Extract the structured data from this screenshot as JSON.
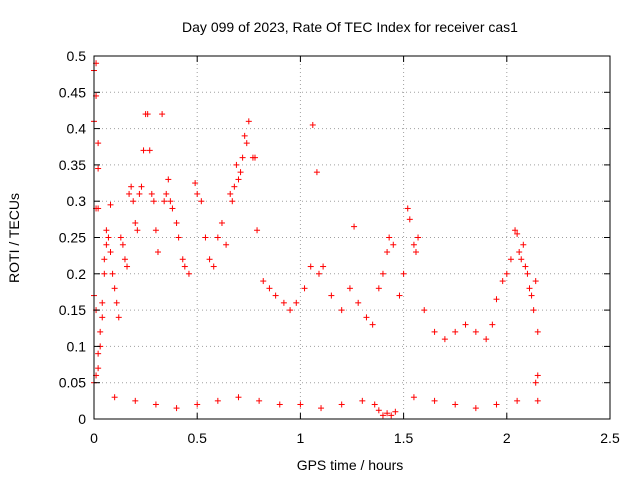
{
  "chart_data": {
    "type": "scatter",
    "title": "Day 099 of 2023, Rate Of TEC Index for receiver cas1",
    "xlabel": "GPS time / hours",
    "ylabel": "ROTI / TECUs",
    "xlim": [
      0,
      2.5
    ],
    "ylim": [
      0,
      0.5
    ],
    "x_ticks": [
      "0",
      "0.5",
      "1",
      "1.5",
      "2",
      "2.5"
    ],
    "y_ticks": [
      "0",
      "0.05",
      "0.1",
      "0.15",
      "0.2",
      "0.25",
      "0.3",
      "0.35",
      "0.4",
      "0.45",
      "0.5"
    ],
    "x_tick_values": [
      0,
      0.5,
      1,
      1.5,
      2,
      2.5
    ],
    "y_tick_values": [
      0,
      0.05,
      0.1,
      0.15,
      0.2,
      0.25,
      0.3,
      0.35,
      0.4,
      0.45,
      0.5
    ],
    "grid": true,
    "marker": "plus",
    "color": "#ff0000",
    "series": [
      {
        "points": [
          [
            0.0,
            0.48
          ],
          [
            0.01,
            0.49
          ],
          [
            0.01,
            0.445
          ],
          [
            0.0,
            0.41
          ],
          [
            0.02,
            0.38
          ],
          [
            0.02,
            0.345
          ],
          [
            0.01,
            0.29
          ],
          [
            0.02,
            0.29
          ],
          [
            0.0,
            0.17
          ],
          [
            0.01,
            0.15
          ],
          [
            0.0,
            0.05
          ],
          [
            0.01,
            0.06
          ],
          [
            0.02,
            0.07
          ],
          [
            0.02,
            0.09
          ],
          [
            0.03,
            0.1
          ],
          [
            0.03,
            0.12
          ],
          [
            0.04,
            0.14
          ],
          [
            0.04,
            0.16
          ],
          [
            0.05,
            0.2
          ],
          [
            0.05,
            0.22
          ],
          [
            0.06,
            0.24
          ],
          [
            0.06,
            0.26
          ],
          [
            0.07,
            0.25
          ],
          [
            0.08,
            0.23
          ],
          [
            0.09,
            0.2
          ],
          [
            0.1,
            0.18
          ],
          [
            0.08,
            0.295
          ],
          [
            0.11,
            0.16
          ],
          [
            0.12,
            0.14
          ],
          [
            0.13,
            0.25
          ],
          [
            0.14,
            0.24
          ],
          [
            0.15,
            0.22
          ],
          [
            0.16,
            0.21
          ],
          [
            0.17,
            0.31
          ],
          [
            0.18,
            0.32
          ],
          [
            0.19,
            0.3
          ],
          [
            0.2,
            0.27
          ],
          [
            0.21,
            0.26
          ],
          [
            0.22,
            0.31
          ],
          [
            0.23,
            0.32
          ],
          [
            0.24,
            0.37
          ],
          [
            0.25,
            0.42
          ],
          [
            0.26,
            0.42
          ],
          [
            0.27,
            0.37
          ],
          [
            0.28,
            0.31
          ],
          [
            0.29,
            0.3
          ],
          [
            0.3,
            0.26
          ],
          [
            0.31,
            0.23
          ],
          [
            0.33,
            0.42
          ],
          [
            0.34,
            0.3
          ],
          [
            0.35,
            0.31
          ],
          [
            0.36,
            0.33
          ],
          [
            0.37,
            0.3
          ],
          [
            0.38,
            0.29
          ],
          [
            0.4,
            0.27
          ],
          [
            0.41,
            0.25
          ],
          [
            0.43,
            0.22
          ],
          [
            0.44,
            0.21
          ],
          [
            0.46,
            0.2
          ],
          [
            0.49,
            0.325
          ],
          [
            0.5,
            0.31
          ],
          [
            0.52,
            0.3
          ],
          [
            0.54,
            0.25
          ],
          [
            0.56,
            0.22
          ],
          [
            0.58,
            0.21
          ],
          [
            0.6,
            0.25
          ],
          [
            0.62,
            0.27
          ],
          [
            0.64,
            0.24
          ],
          [
            0.66,
            0.31
          ],
          [
            0.67,
            0.3
          ],
          [
            0.68,
            0.32
          ],
          [
            0.69,
            0.35
          ],
          [
            0.7,
            0.33
          ],
          [
            0.71,
            0.34
          ],
          [
            0.72,
            0.36
          ],
          [
            0.73,
            0.39
          ],
          [
            0.74,
            0.38
          ],
          [
            0.75,
            0.41
          ],
          [
            0.77,
            0.36
          ],
          [
            0.78,
            0.36
          ],
          [
            0.79,
            0.26
          ],
          [
            0.82,
            0.19
          ],
          [
            0.85,
            0.18
          ],
          [
            0.88,
            0.17
          ],
          [
            0.92,
            0.16
          ],
          [
            0.95,
            0.15
          ],
          [
            0.98,
            0.16
          ],
          [
            1.02,
            0.18
          ],
          [
            1.05,
            0.21
          ],
          [
            1.06,
            0.405
          ],
          [
            1.08,
            0.34
          ],
          [
            1.09,
            0.2
          ],
          [
            1.11,
            0.21
          ],
          [
            1.15,
            0.17
          ],
          [
            1.2,
            0.15
          ],
          [
            1.24,
            0.18
          ],
          [
            1.26,
            0.265
          ],
          [
            1.28,
            0.16
          ],
          [
            1.32,
            0.14
          ],
          [
            1.35,
            0.13
          ],
          [
            1.38,
            0.18
          ],
          [
            1.4,
            0.2
          ],
          [
            1.42,
            0.23
          ],
          [
            1.43,
            0.25
          ],
          [
            1.45,
            0.24
          ],
          [
            1.48,
            0.17
          ],
          [
            1.5,
            0.2
          ],
          [
            1.52,
            0.29
          ],
          [
            1.53,
            0.275
          ],
          [
            1.55,
            0.24
          ],
          [
            1.56,
            0.23
          ],
          [
            1.57,
            0.25
          ],
          [
            1.6,
            0.15
          ],
          [
            1.65,
            0.12
          ],
          [
            1.7,
            0.11
          ],
          [
            1.75,
            0.12
          ],
          [
            1.8,
            0.13
          ],
          [
            1.85,
            0.12
          ],
          [
            1.9,
            0.11
          ],
          [
            1.93,
            0.13
          ],
          [
            1.95,
            0.165
          ],
          [
            1.98,
            0.19
          ],
          [
            2.0,
            0.2
          ],
          [
            2.02,
            0.22
          ],
          [
            2.04,
            0.26
          ],
          [
            2.05,
            0.255
          ],
          [
            2.06,
            0.23
          ],
          [
            2.07,
            0.22
          ],
          [
            2.08,
            0.24
          ],
          [
            2.09,
            0.21
          ],
          [
            2.1,
            0.2
          ],
          [
            2.11,
            0.18
          ],
          [
            2.12,
            0.17
          ],
          [
            2.13,
            0.15
          ],
          [
            2.14,
            0.19
          ],
          [
            2.15,
            0.12
          ],
          [
            2.15,
            0.06
          ],
          [
            2.15,
            0.025
          ],
          [
            2.14,
            0.05
          ],
          [
            1.4,
            0.005
          ],
          [
            1.42,
            0.008
          ],
          [
            1.44,
            0.005
          ],
          [
            1.46,
            0.01
          ],
          [
            1.38,
            0.012
          ],
          [
            1.36,
            0.02
          ],
          [
            0.1,
            0.03
          ],
          [
            0.2,
            0.025
          ],
          [
            0.3,
            0.02
          ],
          [
            0.4,
            0.015
          ],
          [
            0.5,
            0.02
          ],
          [
            0.6,
            0.025
          ],
          [
            0.7,
            0.03
          ],
          [
            0.8,
            0.025
          ],
          [
            0.9,
            0.02
          ],
          [
            1.0,
            0.02
          ],
          [
            1.1,
            0.015
          ],
          [
            1.2,
            0.02
          ],
          [
            1.3,
            0.025
          ],
          [
            1.55,
            0.03
          ],
          [
            1.65,
            0.025
          ],
          [
            1.75,
            0.02
          ],
          [
            1.85,
            0.015
          ],
          [
            1.95,
            0.02
          ],
          [
            2.05,
            0.025
          ]
        ]
      }
    ]
  }
}
